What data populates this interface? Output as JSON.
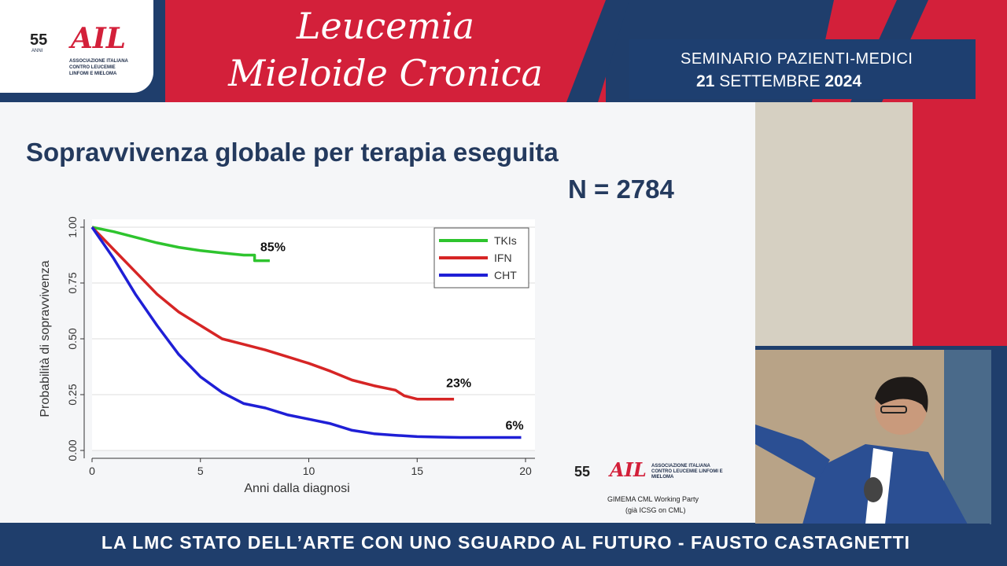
{
  "header": {
    "title_line1": "Leucemia",
    "title_line2": "Mieloide Cronica",
    "seminar_line1": "SEMINARIO PAZIENTI-MEDICI",
    "seminar_day": "21",
    "seminar_month": "SETTEMBRE",
    "seminar_year": "2024",
    "logo_years": "55",
    "logo_years_sub": "ANNI",
    "logo_text": "AIL",
    "logo_caption": "ASSOCIAZIONE ITALIANA CONTRO LEUCEMIE LINFOMI E MIELOMA"
  },
  "slide": {
    "title": "Sopravvivenza globale per terapia eseguita",
    "n_label": "N = 2784",
    "source_line1": "GIMEMA CML Working Party",
    "source_line2": "(già ICSG on CML)"
  },
  "bottom_bar": {
    "text": "LA LMC STATO DELL’ARTE CON UNO SGUARDO AL FUTURO - FAUSTO CASTAGNETTI"
  },
  "colors": {
    "red": "#d3203a",
    "navy": "#1f3e6c",
    "tki": "#2ec42e",
    "ifn": "#d62525",
    "cht": "#1f1fd6"
  },
  "chart_data": {
    "type": "line",
    "xlabel": "Anni dalla diagnosi",
    "ylabel": "Probabilità di sopravvivenza",
    "xlim": [
      0,
      20
    ],
    "ylim": [
      0,
      1
    ],
    "xticks": [
      "0",
      "5",
      "10",
      "15",
      "20"
    ],
    "yticks": [
      "0.00",
      "0.25",
      "0.50",
      "0.75",
      "1.00"
    ],
    "legend_position": "top-right",
    "series": [
      {
        "name": "TKIs",
        "color": "#2ec42e",
        "end_label": "85%",
        "x": [
          0,
          1,
          2,
          3,
          4,
          5,
          6,
          7,
          7.5,
          7.5,
          8.2
        ],
        "y": [
          1.0,
          0.98,
          0.955,
          0.93,
          0.91,
          0.895,
          0.885,
          0.875,
          0.875,
          0.85,
          0.85
        ]
      },
      {
        "name": "IFN",
        "color": "#d62525",
        "end_label": "23%",
        "x": [
          0,
          1,
          2,
          3,
          4,
          5,
          6,
          7,
          8,
          9,
          10,
          11,
          12,
          13,
          14,
          14.4,
          15,
          16,
          16.7
        ],
        "y": [
          1.0,
          0.9,
          0.8,
          0.7,
          0.62,
          0.56,
          0.5,
          0.475,
          0.45,
          0.42,
          0.39,
          0.355,
          0.315,
          0.29,
          0.27,
          0.245,
          0.23,
          0.23,
          0.23
        ]
      },
      {
        "name": "CHT",
        "color": "#1f1fd6",
        "end_label": "6%",
        "x": [
          0,
          1,
          2,
          3,
          4,
          5,
          6,
          7,
          8,
          9,
          10,
          11,
          12,
          13,
          14,
          15,
          16,
          17,
          18,
          19,
          19.8
        ],
        "y": [
          1.0,
          0.86,
          0.7,
          0.56,
          0.43,
          0.33,
          0.26,
          0.21,
          0.19,
          0.16,
          0.14,
          0.12,
          0.09,
          0.075,
          0.068,
          0.062,
          0.06,
          0.058,
          0.058,
          0.058,
          0.058
        ]
      }
    ]
  }
}
